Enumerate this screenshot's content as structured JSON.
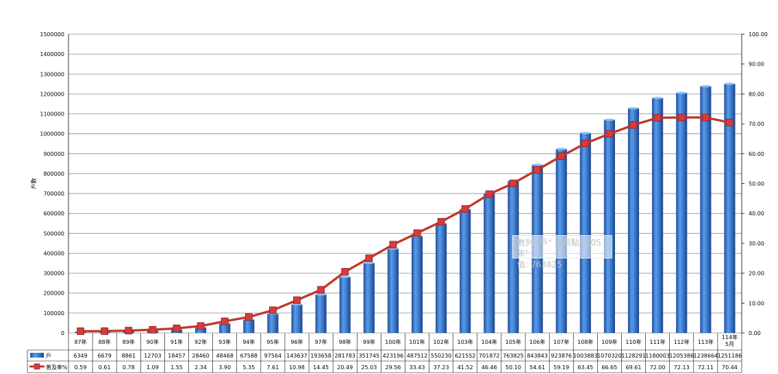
{
  "chart_data": {
    "type": "bar",
    "ylabel": "戶數",
    "y_left_ticks": [
      "0",
      "100000",
      "200000",
      "300000",
      "400000",
      "500000",
      "600000",
      "700000",
      "800000",
      "900000",
      "1000000",
      "1100000",
      "1200000",
      "1300000",
      "1400000",
      "1500000"
    ],
    "y_right_ticks": [
      "0.00",
      "10.00",
      "20.00",
      "30.00",
      "40.00",
      "50.00",
      "60.00",
      "70.00",
      "80.00",
      "90.00",
      "100.00"
    ],
    "ylim": [
      0,
      1500000
    ],
    "y2lim": [
      0,
      100
    ],
    "categories": [
      "87年",
      "88年",
      "89年",
      "90年",
      "91年",
      "92年",
      "93年",
      "94年",
      "95年",
      "96年",
      "97年",
      "98年",
      "99年",
      "100年",
      "101年",
      "102年",
      "103年",
      "104年",
      "105年",
      "106年",
      "107年",
      "108年",
      "109年",
      "110年",
      "111年",
      "112年",
      "113年",
      "114年 5月"
    ],
    "series": [
      {
        "name": "戶",
        "color": "#3a7bd5",
        "values": [
          6349,
          6679,
          8861,
          12703,
          18457,
          28460,
          48468,
          67588,
          97564,
          143637,
          193658,
          281783,
          351745,
          423196,
          487512,
          550230,
          621552,
          701872,
          763825,
          843843,
          923876,
          1003883,
          1070320,
          1128291,
          1180003,
          1205386,
          1238664,
          1251186
        ],
        "labels": [
          "6349",
          "6679",
          "8861",
          "12703",
          "18457",
          "28460",
          "48468",
          "67588",
          "97564",
          "143637",
          "193658",
          "281783",
          "351745",
          "423196",
          "487512",
          "550230",
          "621552",
          "701872",
          "763825",
          "843843",
          "923876",
          "1003883",
          "1070320",
          "1128291",
          "1180003",
          "1205386",
          "1238664",
          "1251186"
        ]
      },
      {
        "name": "普及率%",
        "color": "#c0392b",
        "axis": "right",
        "values": [
          0.59,
          0.61,
          0.78,
          1.09,
          1.55,
          2.34,
          3.9,
          5.35,
          7.61,
          10.98,
          14.45,
          20.49,
          25.03,
          29.56,
          33.43,
          37.23,
          41.52,
          46.46,
          50.1,
          54.61,
          59.19,
          63.45,
          66.65,
          69.61,
          72.0,
          72.13,
          72.11,
          70.44
        ],
        "labels": [
          "0.59",
          "0.61",
          "0.78",
          "1.09",
          "1.55",
          "2.34",
          "3.90",
          "5.35",
          "7.61",
          "10.98",
          "14.45",
          "20.49",
          "25.03",
          "29.56",
          "33.43",
          "37.23",
          "41.52",
          "46.46",
          "50.10",
          "54.61",
          "59.19",
          "63.45",
          "66.65",
          "69.61",
          "72.00",
          "72.13",
          "72.11",
          "70.44"
        ]
      }
    ],
    "tooltip": {
      "line1": "數列 \"戶\" 資料點 \"105年\"",
      "line2": "值: 763825"
    },
    "grid": true,
    "legend": "data-table"
  }
}
